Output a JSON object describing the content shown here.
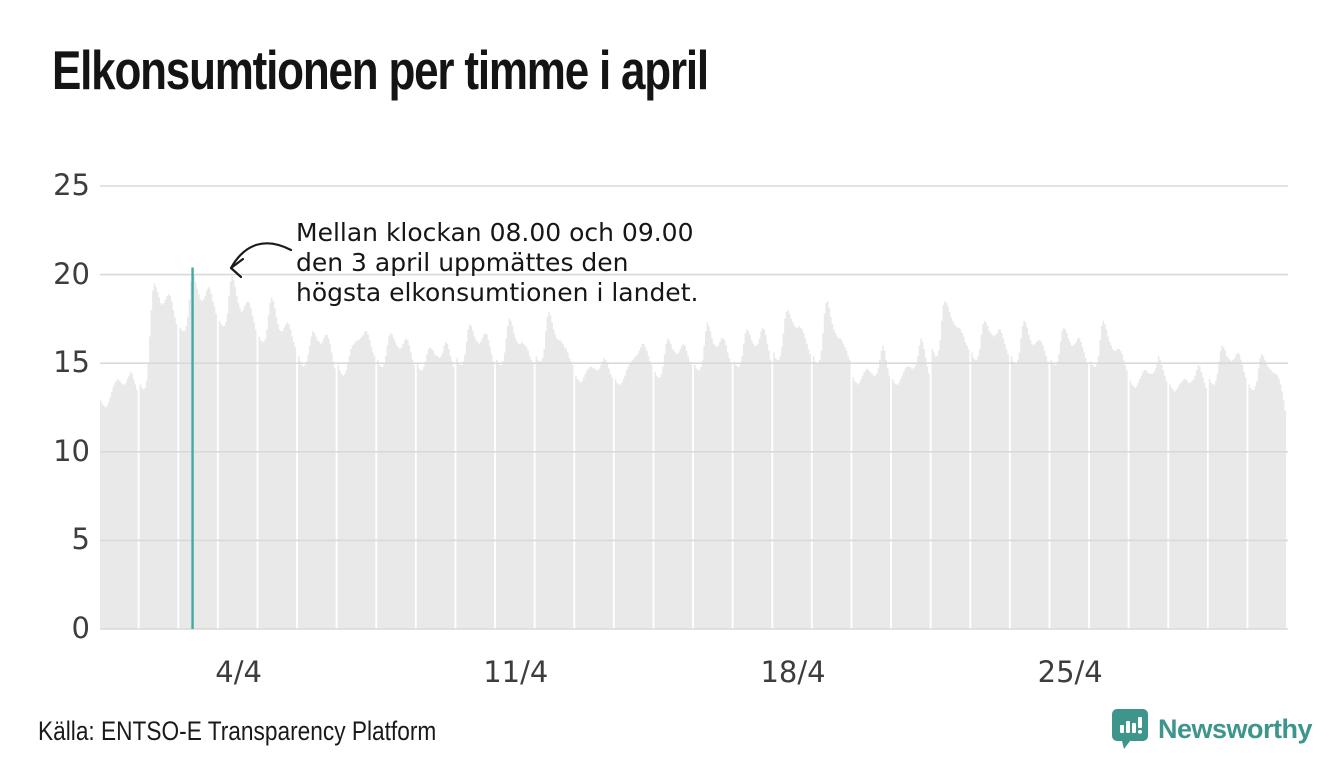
{
  "title": "Elkonsumtionen per timme i april",
  "annotation": {
    "line1": "Mellan klockan 08.00 och 09.00",
    "line2": "den 3 april uppmättes den",
    "line3": "högsta elkonsumtionen i landet."
  },
  "footer": {
    "source": "Källa: ENTSO-E Transparency Platform",
    "brand": "Newsworthy"
  },
  "colors": {
    "bar": "#e9e9e9",
    "grid": "#d9d9d9",
    "accent_line": "#46a8a0",
    "brand_teal": "#3d958b",
    "arrow": "#1a1a1a"
  },
  "chart_data": {
    "type": "bar",
    "title": "Elkonsumtionen per timme i april",
    "xlabel": "",
    "ylabel": "",
    "ylim": [
      0,
      25
    ],
    "yticks": [
      0,
      5,
      10,
      15,
      20,
      25
    ],
    "xticks": [
      {
        "label": "4/4",
        "day": 4
      },
      {
        "label": "11/4",
        "day": 11
      },
      {
        "label": "18/4",
        "day": 18
      },
      {
        "label": "25/4",
        "day": 25
      }
    ],
    "grid": true,
    "legend": false,
    "highlight": {
      "day": 3,
      "hour": 8,
      "value": 20.4
    },
    "days": [
      {
        "day": 1,
        "hours": [
          12.9,
          12.7,
          12.6,
          12.5,
          12.6,
          12.8,
          13.1,
          13.4,
          13.7,
          13.9,
          14.0,
          14.1,
          14.0,
          13.9,
          13.8,
          13.8,
          13.9,
          14.1,
          14.3,
          14.5,
          14.4,
          14.1,
          13.8,
          13.5
        ]
      },
      {
        "day": 2,
        "hours": [
          13.8,
          13.6,
          13.5,
          13.6,
          14.0,
          15.0,
          16.5,
          18.0,
          19.1,
          19.5,
          19.3,
          19.0,
          18.7,
          18.4,
          18.3,
          18.4,
          18.6,
          18.8,
          18.9,
          18.8,
          18.5,
          18.0,
          17.6,
          17.2
        ]
      },
      {
        "day": 3,
        "hours": [
          17.0,
          16.9,
          16.8,
          16.8,
          17.1,
          17.6,
          18.6,
          19.6,
          20.4,
          20.0,
          19.6,
          19.2,
          18.9,
          18.6,
          18.5,
          18.6,
          18.8,
          19.1,
          19.3,
          19.2,
          18.9,
          18.5,
          18.2,
          17.8
        ]
      },
      {
        "day": 4,
        "hours": [
          17.4,
          17.2,
          17.1,
          17.1,
          17.3,
          17.8,
          18.8,
          19.6,
          19.9,
          19.7,
          19.3,
          18.8,
          18.4,
          18.1,
          17.9,
          18.0,
          18.2,
          18.4,
          18.5,
          18.4,
          18.1,
          17.7,
          17.3,
          16.9
        ]
      },
      {
        "day": 5,
        "hours": [
          16.5,
          16.3,
          16.2,
          16.2,
          16.4,
          16.9,
          17.7,
          18.4,
          18.7,
          18.5,
          18.1,
          17.6,
          17.2,
          16.9,
          16.8,
          16.8,
          17.0,
          17.2,
          17.3,
          17.2,
          16.9,
          16.5,
          16.2,
          15.9
        ]
      },
      {
        "day": 6,
        "hours": [
          15.4,
          15.1,
          14.9,
          14.8,
          14.9,
          15.1,
          15.5,
          16.0,
          16.5,
          16.8,
          16.7,
          16.5,
          16.3,
          16.2,
          16.1,
          16.2,
          16.4,
          16.6,
          16.6,
          16.4,
          16.1,
          15.6,
          15.1,
          14.7
        ]
      },
      {
        "day": 7,
        "hours": [
          14.9,
          14.6,
          14.4,
          14.3,
          14.4,
          14.6,
          15.0,
          15.4,
          15.8,
          16.0,
          16.1,
          16.2,
          16.3,
          16.3,
          16.4,
          16.5,
          16.6,
          16.8,
          16.8,
          16.6,
          16.3,
          15.9,
          15.6,
          15.4
        ]
      },
      {
        "day": 8,
        "hours": [
          15.2,
          14.9,
          14.8,
          14.8,
          15.0,
          15.4,
          16.0,
          16.5,
          16.7,
          16.6,
          16.4,
          16.2,
          16.0,
          15.9,
          15.8,
          15.9,
          16.1,
          16.3,
          16.4,
          16.3,
          16.0,
          15.6,
          15.2,
          14.9
        ]
      },
      {
        "day": 9,
        "hours": [
          15.0,
          14.7,
          14.6,
          14.6,
          14.8,
          15.1,
          15.5,
          15.8,
          15.9,
          15.8,
          15.7,
          15.5,
          15.4,
          15.4,
          15.3,
          15.4,
          15.6,
          16.0,
          16.2,
          16.1,
          15.8,
          15.4,
          15.1,
          14.8
        ]
      },
      {
        "day": 10,
        "hours": [
          15.3,
          15.0,
          14.9,
          14.9,
          15.1,
          15.5,
          16.2,
          16.9,
          17.2,
          17.1,
          16.8,
          16.5,
          16.3,
          16.2,
          16.1,
          16.2,
          16.4,
          16.6,
          16.7,
          16.6,
          16.3,
          15.9,
          15.5,
          15.1
        ]
      },
      {
        "day": 11,
        "hours": [
          15.2,
          15.0,
          14.9,
          14.9,
          15.1,
          15.6,
          16.4,
          17.1,
          17.5,
          17.4,
          17.1,
          16.7,
          16.4,
          16.2,
          16.1,
          16.1,
          16.2,
          16.1,
          16.0,
          15.9,
          15.7,
          15.4,
          15.2,
          15.0
        ]
      },
      {
        "day": 12,
        "hours": [
          15.4,
          15.2,
          15.1,
          15.1,
          15.3,
          15.8,
          16.8,
          17.6,
          17.9,
          17.7,
          17.3,
          16.9,
          16.6,
          16.4,
          16.3,
          16.3,
          16.2,
          16.1,
          15.9,
          15.8,
          15.6,
          15.3,
          15.1,
          14.9
        ]
      },
      {
        "day": 13,
        "hours": [
          14.3,
          14.1,
          14.0,
          13.9,
          14.0,
          14.2,
          14.4,
          14.6,
          14.7,
          14.8,
          14.8,
          14.7,
          14.7,
          14.6,
          14.6,
          14.7,
          14.9,
          15.1,
          15.3,
          15.2,
          15.0,
          14.7,
          14.4,
          14.2
        ]
      },
      {
        "day": 14,
        "hours": [
          14.1,
          13.9,
          13.8,
          13.8,
          13.9,
          14.1,
          14.3,
          14.6,
          14.8,
          15.0,
          15.1,
          15.2,
          15.3,
          15.4,
          15.5,
          15.7,
          15.9,
          16.1,
          16.1,
          15.9,
          15.7,
          15.4,
          15.1,
          14.9
        ]
      },
      {
        "day": 15,
        "hours": [
          14.5,
          14.3,
          14.2,
          14.2,
          14.4,
          14.8,
          15.5,
          16.1,
          16.4,
          16.3,
          16.1,
          15.8,
          15.7,
          15.6,
          15.5,
          15.6,
          15.8,
          16.0,
          16.1,
          16.0,
          15.7,
          15.4,
          15.1,
          14.9
        ]
      },
      {
        "day": 16,
        "hours": [
          14.9,
          14.7,
          14.6,
          14.6,
          14.8,
          15.2,
          16.0,
          16.8,
          17.3,
          17.1,
          16.8,
          16.4,
          16.1,
          16.0,
          15.9,
          16.0,
          16.2,
          16.4,
          16.4,
          16.3,
          16.0,
          15.6,
          15.3,
          15.0
        ]
      },
      {
        "day": 17,
        "hours": [
          15.1,
          14.9,
          14.8,
          14.8,
          15.0,
          15.4,
          16.1,
          16.7,
          16.9,
          16.8,
          16.6,
          16.3,
          16.1,
          16.0,
          16.0,
          16.1,
          16.4,
          16.8,
          17.0,
          16.9,
          16.6,
          16.1,
          15.7,
          15.2
        ]
      },
      {
        "day": 18,
        "hours": [
          15.6,
          15.3,
          15.2,
          15.2,
          15.4,
          15.9,
          16.7,
          17.5,
          17.9,
          18.0,
          17.8,
          17.5,
          17.3,
          17.1,
          17.0,
          17.0,
          17.1,
          17.0,
          16.9,
          16.7,
          16.4,
          16.1,
          15.8,
          15.5
        ]
      },
      {
        "day": 19,
        "hours": [
          15.4,
          15.1,
          15.0,
          15.0,
          15.2,
          15.7,
          16.7,
          17.8,
          18.4,
          18.5,
          18.1,
          17.6,
          17.2,
          16.9,
          16.7,
          16.5,
          16.4,
          16.4,
          16.3,
          16.1,
          15.9,
          15.7,
          15.4,
          15.2
        ]
      },
      {
        "day": 20,
        "hours": [
          14.2,
          14.0,
          13.9,
          13.8,
          13.9,
          14.1,
          14.3,
          14.5,
          14.6,
          14.7,
          14.6,
          14.5,
          14.4,
          14.3,
          14.3,
          14.4,
          14.7,
          15.2,
          15.7,
          16.0,
          15.7,
          15.2,
          14.7,
          14.3
        ]
      },
      {
        "day": 21,
        "hours": [
          14.1,
          13.9,
          13.8,
          13.8,
          13.9,
          14.1,
          14.3,
          14.5,
          14.7,
          14.8,
          14.8,
          14.8,
          14.7,
          14.7,
          14.8,
          15.0,
          15.4,
          16.0,
          16.4,
          16.2,
          15.8,
          15.3,
          14.8,
          14.4
        ]
      },
      {
        "day": 22,
        "hours": [
          15.8,
          15.6,
          15.4,
          15.4,
          15.7,
          16.3,
          17.4,
          18.3,
          18.5,
          18.4,
          18.2,
          17.9,
          17.6,
          17.4,
          17.2,
          17.1,
          17.0,
          17.0,
          16.9,
          16.7,
          16.5,
          16.2,
          16.0,
          15.8
        ]
      },
      {
        "day": 23,
        "hours": [
          15.6,
          15.3,
          15.2,
          15.2,
          15.4,
          15.8,
          16.6,
          17.2,
          17.4,
          17.3,
          17.1,
          16.8,
          16.7,
          16.6,
          16.5,
          16.6,
          16.7,
          16.9,
          16.9,
          16.7,
          16.4,
          16.1,
          15.8,
          15.5
        ]
      },
      {
        "day": 24,
        "hours": [
          15.4,
          15.1,
          15.0,
          15.0,
          15.2,
          15.6,
          16.4,
          17.1,
          17.4,
          17.3,
          17.0,
          16.6,
          16.3,
          16.1,
          16.0,
          16.1,
          16.2,
          16.3,
          16.3,
          16.2,
          16.0,
          15.7,
          15.4,
          15.1
        ]
      },
      {
        "day": 25,
        "hours": [
          15.2,
          15.0,
          14.9,
          14.9,
          15.1,
          15.5,
          16.2,
          16.8,
          17.0,
          16.9,
          16.7,
          16.4,
          16.2,
          16.0,
          16.0,
          16.1,
          16.2,
          16.4,
          16.4,
          16.2,
          15.9,
          15.6,
          15.3,
          15.0
        ]
      },
      {
        "day": 26,
        "hours": [
          15.1,
          14.9,
          14.8,
          14.8,
          15.0,
          15.4,
          16.3,
          17.1,
          17.4,
          17.2,
          16.9,
          16.5,
          16.2,
          16.0,
          15.8,
          15.7,
          15.7,
          15.8,
          15.8,
          15.7,
          15.5,
          15.2,
          14.9,
          14.6
        ]
      },
      {
        "day": 27,
        "hours": [
          14.0,
          13.8,
          13.7,
          13.6,
          13.7,
          13.9,
          14.1,
          14.3,
          14.5,
          14.6,
          14.6,
          14.5,
          14.4,
          14.4,
          14.4,
          14.5,
          14.7,
          15.0,
          15.4,
          15.2,
          14.9,
          14.6,
          14.3,
          14.0
        ]
      },
      {
        "day": 28,
        "hours": [
          13.8,
          13.6,
          13.5,
          13.4,
          13.5,
          13.6,
          13.8,
          13.9,
          14.0,
          14.1,
          14.1,
          14.0,
          13.9,
          13.9,
          14.0,
          14.1,
          14.3,
          14.6,
          14.9,
          14.8,
          14.5,
          14.2,
          13.9,
          13.6
        ]
      },
      {
        "day": 29,
        "hours": [
          14.1,
          13.9,
          13.8,
          13.8,
          14.0,
          14.4,
          15.1,
          15.7,
          16.0,
          15.9,
          15.7,
          15.4,
          15.3,
          15.2,
          15.1,
          15.2,
          15.3,
          15.5,
          15.6,
          15.5,
          15.2,
          14.9,
          14.5,
          14.2
        ]
      },
      {
        "day": 30,
        "hours": [
          13.8,
          13.6,
          13.5,
          13.5,
          13.7,
          14.0,
          14.7,
          15.3,
          15.5,
          15.4,
          15.2,
          15.0,
          14.8,
          14.7,
          14.6,
          14.5,
          14.4,
          14.4,
          14.3,
          14.1,
          13.8,
          13.4,
          12.9,
          12.3
        ]
      }
    ]
  }
}
